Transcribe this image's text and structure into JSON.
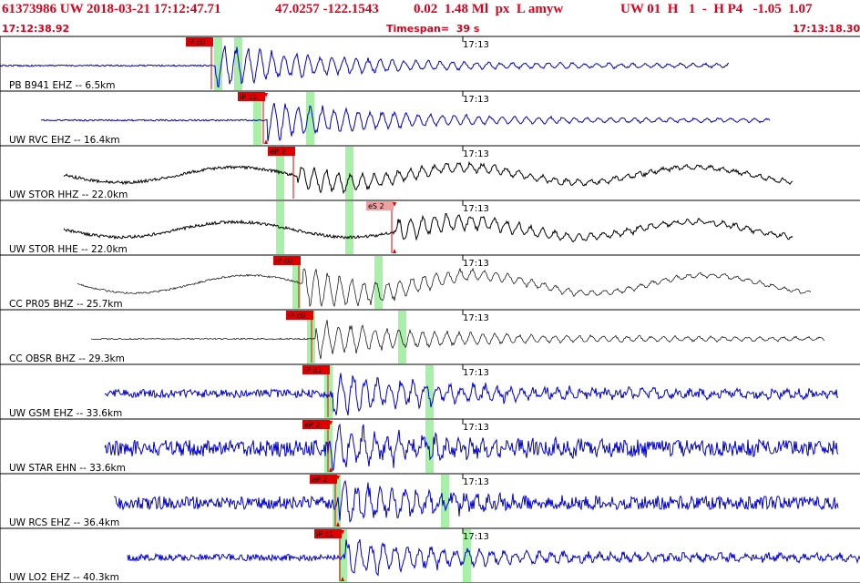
{
  "header": {
    "event_id": "61373986 UW 2018-03-21 17:12:47.71",
    "location": "47.0257 -122.1543",
    "magnitude": "0.02  1.48 Ml  px  L amyw",
    "quality": "UW 01  H   1  -  H P4   -1.05  1.07",
    "start_time": "17:12:38.92",
    "timespan": "Timespan=  39 s",
    "end_time": "17:13:18.30"
  },
  "colors": {
    "header_red": "#e0001b",
    "blue": "#0000cc",
    "black": "#000000",
    "green": "#a8f0a8",
    "pick_fill": "#e00000",
    "pick_pale": "#f0a0a0",
    "grid": "#000000"
  },
  "time_tick_label": "17:13",
  "traces": [
    {
      "label": "PB B941 EHZ -- 6.5km",
      "color": "blue",
      "picks": [
        {
          "text": "iP c0",
          "pale": false,
          "marker": false
        }
      ],
      "start": 0,
      "end": 800,
      "noise": 0.04,
      "amp": 0.9,
      "wave": 0,
      "thin": false
    },
    {
      "label": "UW RVC EHZ -- 16.4km",
      "color": "blue",
      "picks": [
        {
          "text": "iP c1",
          "pale": false,
          "marker": true
        }
      ],
      "start": 45,
      "end": 845,
      "noise": 0.04,
      "amp": 0.8,
      "wave": 0,
      "thin": false
    },
    {
      "label": "UW STOR HHZ -- 22.0km",
      "color": "black",
      "picks": [
        {
          "text": "eP 2",
          "pale": false,
          "marker": false
        }
      ],
      "start": 70,
      "end": 870,
      "noise": 0.08,
      "amp": 0.5,
      "wave": 0.3,
      "thin": false
    },
    {
      "label": "UW STOR HHE -- 22.0km",
      "color": "black",
      "picks": [
        {
          "text": "eS 2",
          "pale": true,
          "marker": true
        }
      ],
      "start": 70,
      "end": 870,
      "noise": 0.08,
      "amp": 0.5,
      "wave": 0.3,
      "thin": false
    },
    {
      "label": "CC PR05 BHZ -- 25.7km",
      "color": "black",
      "picks": [
        {
          "text": "iP c0",
          "pale": false,
          "marker": false
        }
      ],
      "start": 85,
      "end": 890,
      "noise": 0.05,
      "amp": 0.8,
      "wave": 0.35,
      "thin": true
    },
    {
      "label": "CC OBSR BHZ -- 29.3km",
      "color": "black",
      "picks": [
        {
          "text": "iP c0",
          "pale": false,
          "marker": false
        }
      ],
      "start": 100,
      "end": 905,
      "noise": 0.04,
      "amp": 0.75,
      "wave": 0,
      "thin": true
    },
    {
      "label": "UW GSM EHZ -- 33.6km",
      "color": "blue",
      "picks": [
        {
          "text": "iP d1",
          "pale": false,
          "marker": false
        }
      ],
      "start": 115,
      "end": 920,
      "noise": 0.22,
      "amp": 0.9,
      "wave": 0,
      "thin": false
    },
    {
      "label": "UW STAR EHN -- 33.6km",
      "color": "blue",
      "picks": [
        {
          "text": "eP 2",
          "pale": false,
          "marker": true
        }
      ],
      "start": 115,
      "end": 920,
      "noise": 0.45,
      "amp": 0.9,
      "wave": 0,
      "thin": false
    },
    {
      "label": "UW RCS EHZ -- 36.4km",
      "color": "blue",
      "picks": [
        {
          "text": "eP 2",
          "pale": false,
          "marker": true
        }
      ],
      "start": 125,
      "end": 920,
      "noise": 0.35,
      "amp": 0.9,
      "wave": 0,
      "thin": false
    },
    {
      "label": "UW LO2 EHZ -- 40.3km",
      "color": "blue",
      "picks": [
        {
          "text": "iP c1",
          "pale": false,
          "marker": true
        }
      ],
      "start": 140,
      "end": 944,
      "noise": 0.18,
      "amp": 0.8,
      "wave": 0,
      "thin": false
    }
  ]
}
